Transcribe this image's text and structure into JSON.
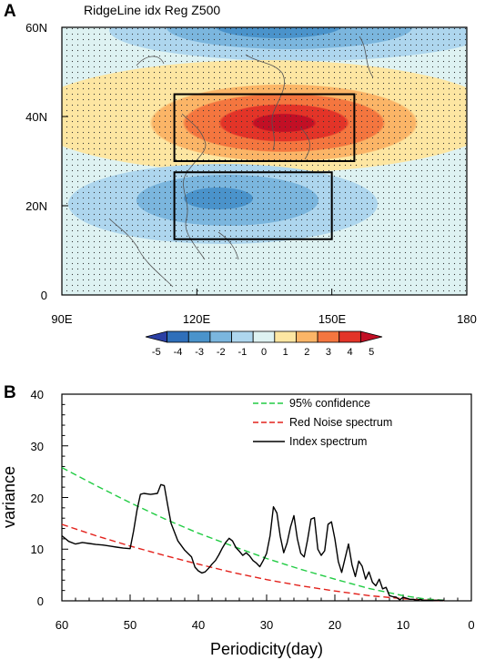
{
  "chart_data": [
    {
      "type": "heatmap",
      "panel_label": "A",
      "title": "RidgeLine idx Reg Z500",
      "x_tick_labels": [
        "90E",
        "120E",
        "150E",
        "180"
      ],
      "y_tick_labels": [
        "0",
        "20N",
        "40N",
        "60N"
      ],
      "xlim": [
        90,
        180
      ],
      "ylim": [
        0,
        60
      ],
      "x_ticks": [
        90,
        120,
        150,
        180
      ],
      "y_ticks": [
        0,
        20,
        40,
        60
      ],
      "colorbar": {
        "labels": [
          "-5",
          "-4",
          "-3",
          "-2",
          "-1",
          "0",
          "1",
          "2",
          "3",
          "4",
          "5"
        ],
        "levels": [
          -5,
          -4,
          -3,
          -2,
          -1,
          0,
          1,
          2,
          3,
          4,
          5
        ],
        "colors": [
          "#2b3fa4",
          "#2f6fba",
          "#4a93cb",
          "#7bb6de",
          "#aed6ee",
          "#def2f2",
          "#fde6a2",
          "#fbb567",
          "#f4763f",
          "#e33428",
          "#c20f25"
        ]
      },
      "features": [
        {
          "kind": "positive-anomaly",
          "center_lon": 138,
          "center_lat": 39,
          "peak": 5
        },
        {
          "kind": "negative-anomaly",
          "center_lon": 125,
          "center_lat": 21,
          "peak": -3
        },
        {
          "kind": "negative-anomaly",
          "center_lon": 135,
          "center_lat": 61,
          "peak": -3
        }
      ],
      "boxes": [
        {
          "lon": [
            115,
            155
          ],
          "lat": [
            30,
            45
          ]
        },
        {
          "lon": [
            115,
            150
          ],
          "lat": [
            12.5,
            27.5
          ]
        }
      ],
      "stippling": "significant"
    },
    {
      "type": "line",
      "panel_label": "B",
      "xlabel": "Periodicity(day)",
      "ylabel": "variance",
      "xlim": [
        60,
        0
      ],
      "ylim": [
        0,
        40
      ],
      "x_tick_labels": [
        "60",
        "50",
        "40",
        "30",
        "20",
        "10",
        "0"
      ],
      "y_tick_labels": [
        "0",
        "10",
        "20",
        "30",
        "40"
      ],
      "x_ticks": [
        60,
        50,
        40,
        30,
        20,
        10,
        0
      ],
      "y_ticks": [
        0,
        10,
        20,
        30,
        40
      ],
      "legend_position": "top-right",
      "series": [
        {
          "name": "95% confidence",
          "color": "#22cc44",
          "dash": "dashed",
          "x": [
            60,
            55,
            50,
            45,
            40,
            35,
            30,
            25,
            20,
            15,
            10,
            7,
            4
          ],
          "y": [
            25.8,
            22.3,
            19.0,
            15.9,
            13.1,
            10.6,
            8.2,
            6.1,
            4.2,
            2.4,
            1.0,
            0.4,
            0.1
          ]
        },
        {
          "name": "Red Noise spectrum",
          "color": "#e3221c",
          "dash": "dashed",
          "x": [
            60,
            55,
            50,
            45,
            40,
            35,
            30,
            25,
            20,
            15,
            10,
            7,
            4
          ],
          "y": [
            14.8,
            12.6,
            10.6,
            8.8,
            7.1,
            5.5,
            4.1,
            2.9,
            1.9,
            1.0,
            0.4,
            0.15,
            0.05
          ]
        },
        {
          "name": "Index spectrum",
          "color": "#000000",
          "dash": "solid",
          "x": [
            60,
            59,
            58,
            57,
            56,
            55,
            54,
            53,
            52,
            51,
            50,
            49.5,
            49,
            48.5,
            48,
            47,
            46,
            45.5,
            45,
            44.5,
            44,
            43,
            42,
            41,
            40.5,
            40,
            39.5,
            39,
            38.5,
            38,
            37.5,
            37,
            36.5,
            36,
            35.5,
            35,
            34.5,
            34,
            33.5,
            33,
            32.5,
            32,
            31.5,
            31,
            30.5,
            30,
            29.5,
            29,
            28.5,
            28,
            27.5,
            27,
            26.5,
            26,
            25.5,
            25,
            24.5,
            24,
            23.5,
            23,
            22.5,
            22,
            21.5,
            21,
            20.5,
            20,
            19.5,
            19,
            18.5,
            18,
            17.5,
            17,
            16.5,
            16,
            15.5,
            15,
            14.5,
            14,
            13.5,
            13,
            12.5,
            12,
            11.5,
            11,
            10.5,
            10,
            9.5,
            9,
            8.5,
            8,
            7.5,
            7,
            6,
            5,
            4
          ],
          "y": [
            12.6,
            11.5,
            11.0,
            11.3,
            11.1,
            10.9,
            10.8,
            10.6,
            10.4,
            10.2,
            10.1,
            13.5,
            17.5,
            20.6,
            20.8,
            20.6,
            20.8,
            22.5,
            22.3,
            18.5,
            15.0,
            11.6,
            9.8,
            8.5,
            6.5,
            5.8,
            5.4,
            5.6,
            6.3,
            7.1,
            7.8,
            8.9,
            10.2,
            11.3,
            12.1,
            11.6,
            10.3,
            9.6,
            8.8,
            9.3,
            8.7,
            7.8,
            7.3,
            6.6,
            7.8,
            9.2,
            12.6,
            18.2,
            17.0,
            12.5,
            9.3,
            11.2,
            14.3,
            16.5,
            12.0,
            9.2,
            8.5,
            11.8,
            15.8,
            16.1,
            10.0,
            8.8,
            9.7,
            14.8,
            15.3,
            12.0,
            7.6,
            5.5,
            8.3,
            11.0,
            7.0,
            4.7,
            7.7,
            6.7,
            4.2,
            5.6,
            3.6,
            2.9,
            4.2,
            2.3,
            2.6,
            1.0,
            0.8,
            0.7,
            0.2,
            0.7,
            0.5,
            0.3,
            0.3,
            0.1,
            0.3,
            0.1,
            0.1,
            0.1,
            0.1
          ]
        }
      ]
    }
  ]
}
